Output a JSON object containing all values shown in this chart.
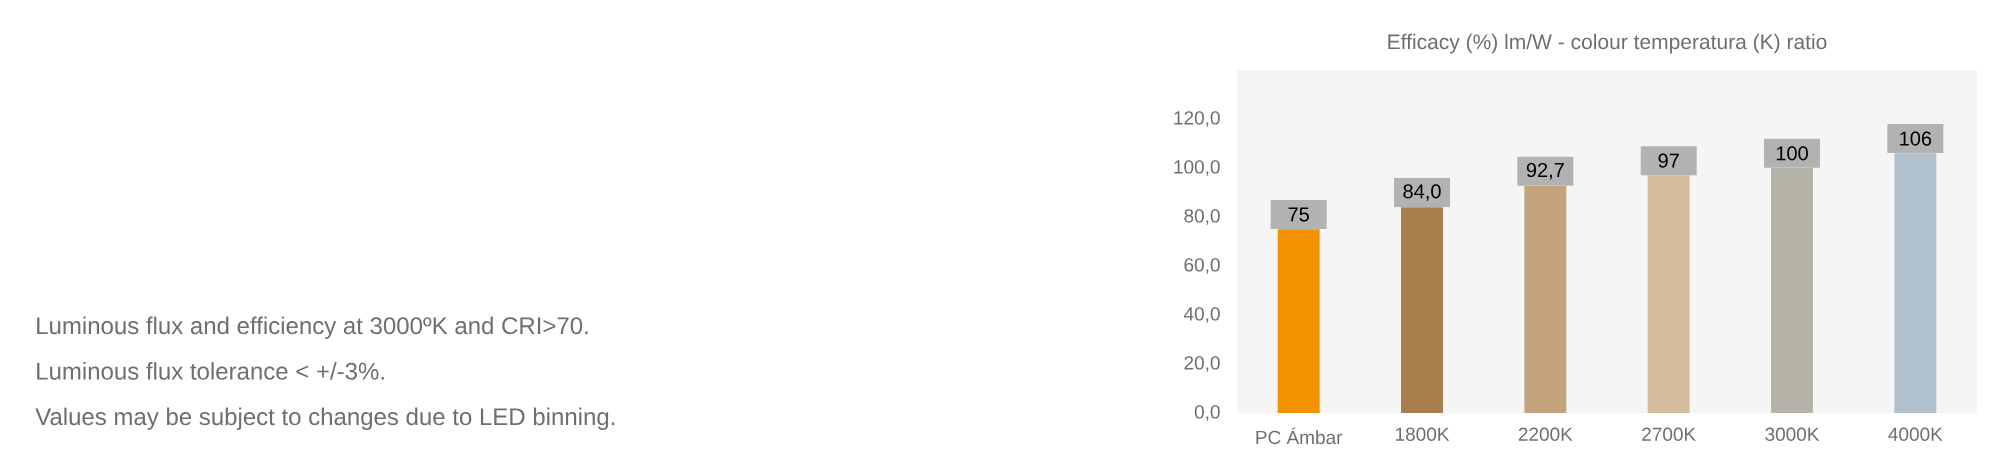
{
  "chart_data": {
    "type": "bar",
    "title": "Efficacy (%) lm/W - colour temperatura (K) ratio",
    "categories": [
      "PC Ámbar",
      "1800K",
      "2200K",
      "2700K",
      "3000K",
      "4000K"
    ],
    "values": [
      75,
      84,
      92.7,
      97,
      100,
      106
    ],
    "value_labels": [
      "75",
      "84,0",
      "92,7",
      "97",
      "100",
      "106"
    ],
    "colors": [
      "#f39200",
      "#a97d4c",
      "#c4a47c",
      "#d4bc9c",
      "#b4b3a5",
      "#b0c0cc"
    ],
    "ylim": [
      0,
      140
    ],
    "yticks": [
      {
        "value": 0,
        "label": "0,0"
      },
      {
        "value": 20,
        "label": "20,0"
      },
      {
        "value": 40,
        "label": "40,0"
      },
      {
        "value": 60,
        "label": "60,0"
      },
      {
        "value": 80,
        "label": "80,0"
      },
      {
        "value": 100,
        "label": "100,0"
      },
      {
        "value": 120,
        "label": "120,0"
      }
    ],
    "annotations": [
      "Luminous flux and efficiency at 3000ºK and CRI>70.",
      "Luminous flux tolerance < +/-3%.",
      "Values may be subject to changes due to LED binning."
    ]
  }
}
